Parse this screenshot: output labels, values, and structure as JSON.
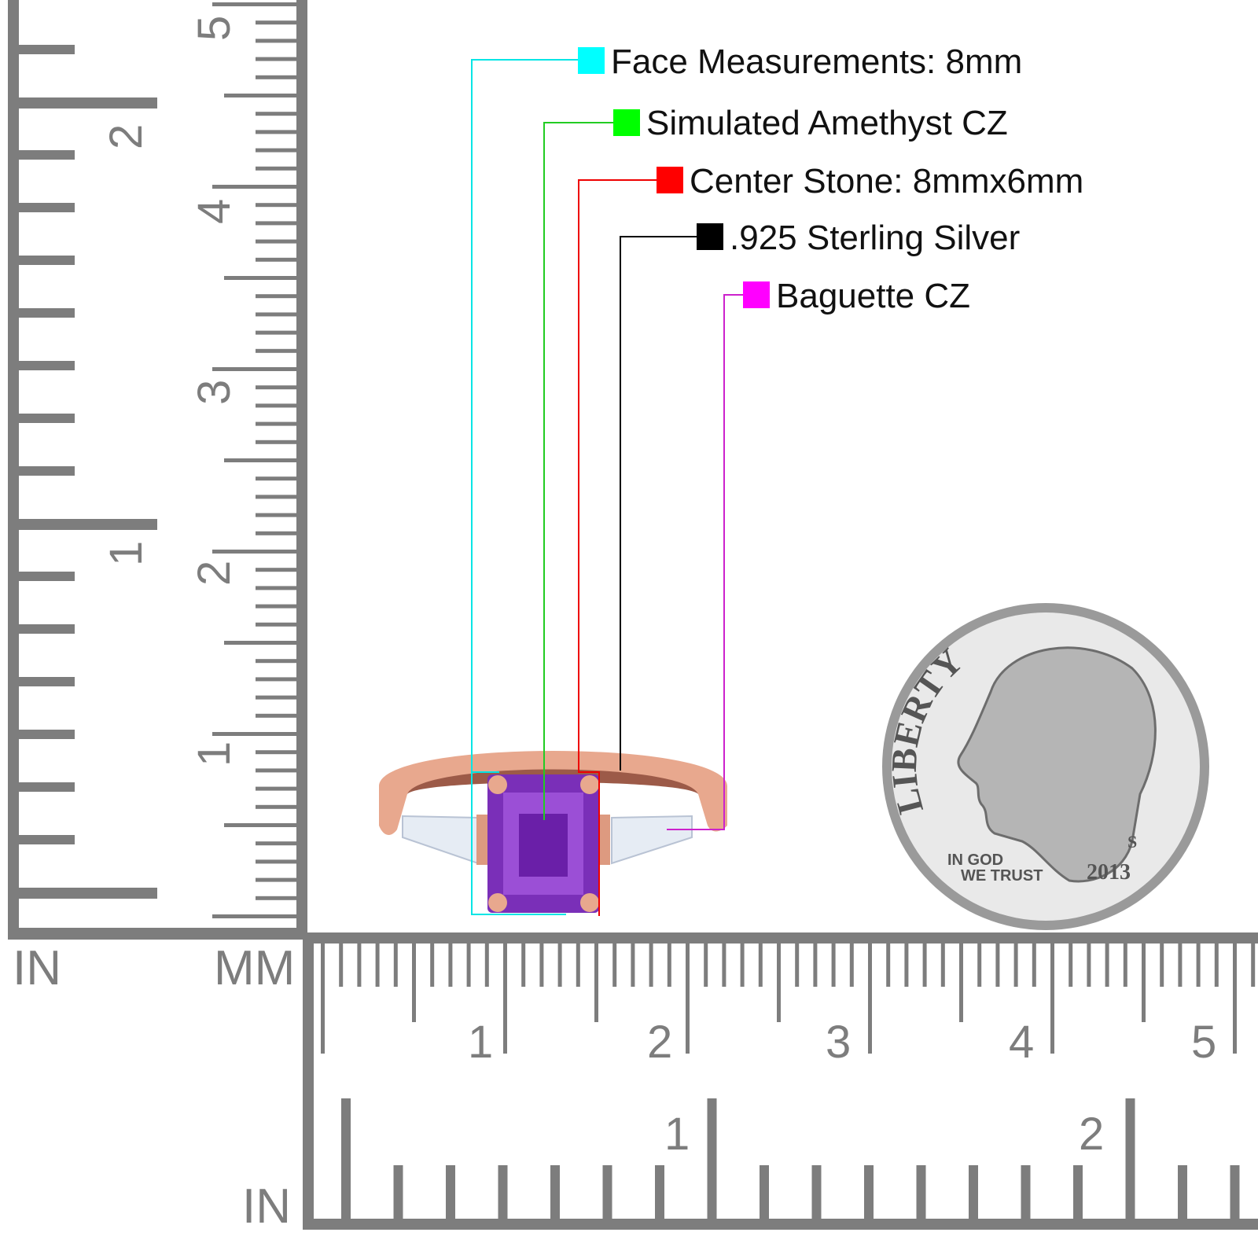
{
  "callouts": [
    {
      "label": "Face Measurements: 8mm",
      "color": "#00ffff"
    },
    {
      "label": "Simulated Amethyst CZ",
      "color": "#00ff00"
    },
    {
      "label": "Center Stone: 8mmx6mm",
      "color": "#ff0000"
    },
    {
      "label": ".925 Sterling Silver",
      "color": "#000000"
    },
    {
      "label": "Baguette CZ",
      "color": "#ff00ff"
    }
  ],
  "vertical_ruler": {
    "inch_numbers": [
      "1",
      "2"
    ],
    "mm_numbers": [
      "1",
      "2",
      "3",
      "4",
      "5"
    ],
    "unit_inch": "IN",
    "unit_mm": "MM"
  },
  "horizontal_ruler": {
    "mm_numbers": [
      "1",
      "2",
      "3",
      "4",
      "5"
    ],
    "inch_numbers": [
      "1",
      "2"
    ],
    "unit_inch": "IN"
  },
  "coin": {
    "inscription_top": "LIBERTY",
    "motto_line1": "IN GOD",
    "motto_line2": "WE TRUST",
    "year": "2013",
    "mint_mark": "S"
  },
  "colors": {
    "ruler": "#7d7d7d",
    "rose_gold": "#e8a88e",
    "amethyst": "#7a2fb8",
    "baguette": "#e6ecf4",
    "coin": "#bdbdbd"
  }
}
